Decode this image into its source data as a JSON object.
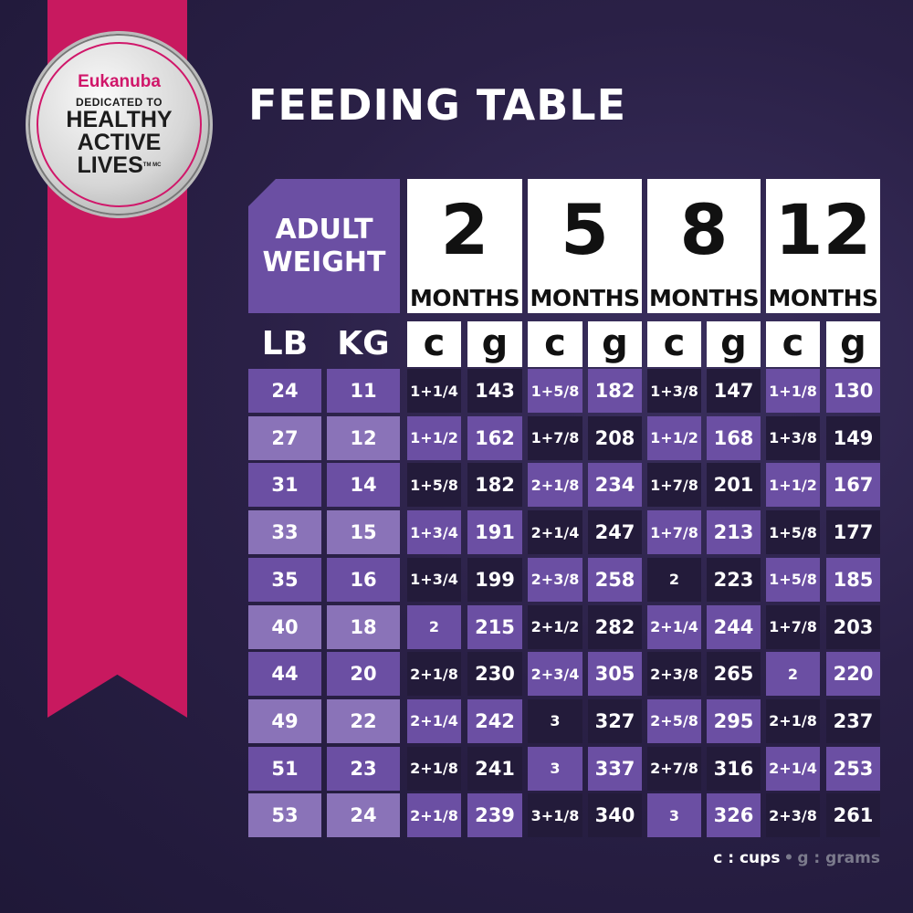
{
  "logo": {
    "brand": "Eukanuba",
    "line1": "DEDICATED TO",
    "line2": "HEALTHY",
    "line3": "ACTIVE",
    "line4": "LIVES",
    "mark": "TM MC"
  },
  "title": "FEEDING TABLE",
  "header": {
    "adult_weight": "ADULT WEIGHT",
    "lb": "LB",
    "kg": "KG",
    "cup_symbol": "c",
    "gram_symbol": "g",
    "ages": [
      {
        "n": "2",
        "unit": "MONTHS"
      },
      {
        "n": "5",
        "unit": "MONTHS"
      },
      {
        "n": "8",
        "unit": "MONTHS"
      },
      {
        "n": "12",
        "unit": "MONTHS"
      }
    ]
  },
  "rows": [
    {
      "lb": "24",
      "kg": "11",
      "v": [
        "1+1/4",
        "143",
        "1+5/8",
        "182",
        "1+3/8",
        "147",
        "1+1/8",
        "130"
      ]
    },
    {
      "lb": "27",
      "kg": "12",
      "v": [
        "1+1/2",
        "162",
        "1+7/8",
        "208",
        "1+1/2",
        "168",
        "1+3/8",
        "149"
      ]
    },
    {
      "lb": "31",
      "kg": "14",
      "v": [
        "1+5/8",
        "182",
        "2+1/8",
        "234",
        "1+7/8",
        "201",
        "1+1/2",
        "167"
      ]
    },
    {
      "lb": "33",
      "kg": "15",
      "v": [
        "1+3/4",
        "191",
        "2+1/4",
        "247",
        "1+7/8",
        "213",
        "1+5/8",
        "177"
      ]
    },
    {
      "lb": "35",
      "kg": "16",
      "v": [
        "1+3/4",
        "199",
        "2+3/8",
        "258",
        "2",
        "223",
        "1+5/8",
        "185"
      ]
    },
    {
      "lb": "40",
      "kg": "18",
      "v": [
        "2",
        "215",
        "2+1/2",
        "282",
        "2+1/4",
        "244",
        "1+7/8",
        "203"
      ]
    },
    {
      "lb": "44",
      "kg": "20",
      "v": [
        "2+1/8",
        "230",
        "2+3/4",
        "305",
        "2+3/8",
        "265",
        "2",
        "220"
      ]
    },
    {
      "lb": "49",
      "kg": "22",
      "v": [
        "2+1/4",
        "242",
        "3",
        "327",
        "2+5/8",
        "295",
        "2+1/8",
        "237"
      ]
    },
    {
      "lb": "51",
      "kg": "23",
      "v": [
        "2+1/8",
        "241",
        "3",
        "337",
        "2+7/8",
        "316",
        "2+1/4",
        "253"
      ]
    },
    {
      "lb": "53",
      "kg": "24",
      "v": [
        "2+1/8",
        "239",
        "3+1/8",
        "340",
        "3",
        "326",
        "2+3/8",
        "261"
      ]
    }
  ],
  "legend": {
    "cups": "c : cups",
    "grams": "g : grams"
  },
  "colors": {
    "background": "#2a2046",
    "ribbon": "#c8195f",
    "purple": "#6b4fa3",
    "dark": "#231b3a",
    "light_purple": "#8a73b8"
  }
}
